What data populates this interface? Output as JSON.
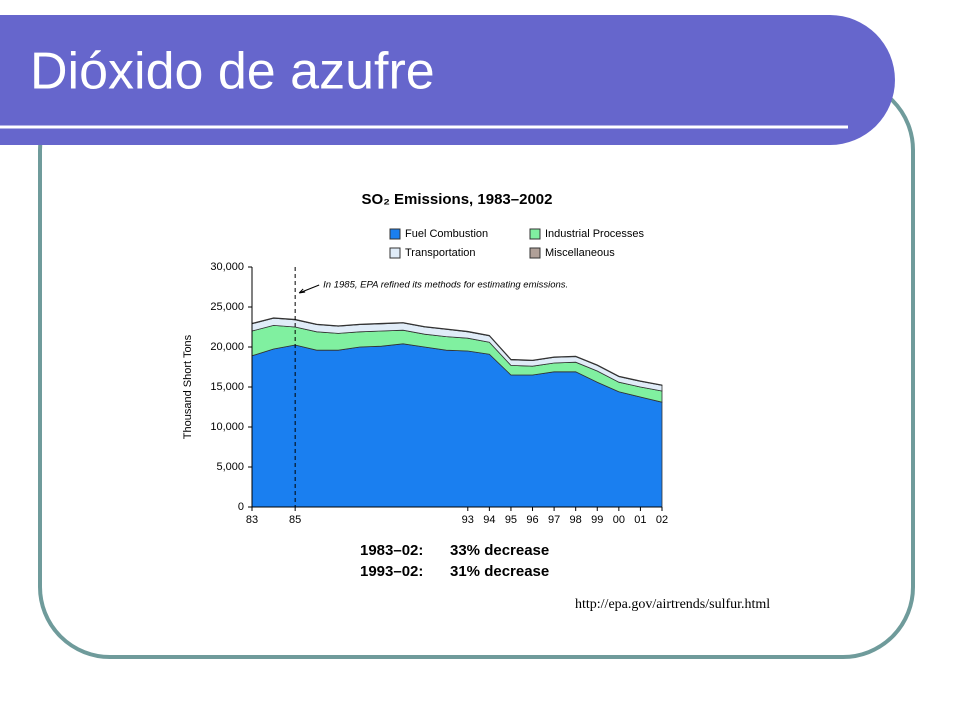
{
  "slide_title": "Dióxido de azufre",
  "chart_data": {
    "type": "stacked-area",
    "title": "SO₂ Emissions, 1983–2002",
    "y_label": "Thousand Short Tons",
    "annotation": "In 1985, EPA refined its methods for estimating emissions.",
    "annotation_x": 1985,
    "x": [
      1983,
      1984,
      1985,
      1986,
      1987,
      1988,
      1989,
      1990,
      1991,
      1992,
      1993,
      1994,
      1995,
      1996,
      1997,
      1998,
      1999,
      2000,
      2001,
      2002
    ],
    "xlim": [
      1983,
      2002
    ],
    "xticks": [
      {
        "value": 1983,
        "label": "83"
      },
      {
        "value": 1985,
        "label": "85"
      },
      {
        "value": 1993,
        "label": "93"
      },
      {
        "value": 1994,
        "label": "94"
      },
      {
        "value": 1995,
        "label": "95"
      },
      {
        "value": 1996,
        "label": "96"
      },
      {
        "value": 1997,
        "label": "97"
      },
      {
        "value": 1998,
        "label": "98"
      },
      {
        "value": 1999,
        "label": "99"
      },
      {
        "value": 2000,
        "label": "00"
      },
      {
        "value": 2001,
        "label": "01"
      },
      {
        "value": 2002,
        "label": "02"
      }
    ],
    "ylim": [
      0,
      30000
    ],
    "yticks": [
      0,
      {
        "value": 5000,
        "label": "5,000"
      },
      {
        "value": 10000,
        "label": "10,000"
      },
      {
        "value": 15000,
        "label": "15,000"
      },
      {
        "value": 20000,
        "label": "20,000"
      },
      {
        "value": 25000,
        "label": "25,000"
      },
      {
        "value": 30000,
        "label": "30,000"
      }
    ],
    "series": [
      {
        "name": "Fuel Combustion",
        "color": "#1a7ff0",
        "values": [
          18900,
          19750,
          20250,
          19600,
          19600,
          20000,
          20100,
          20400,
          20000,
          19600,
          19500,
          19100,
          16500,
          16500,
          16900,
          16900,
          15600,
          14400,
          13750,
          13100
        ]
      },
      {
        "name": "Industrial Processes",
        "color": "#80f0a0",
        "values": [
          3100,
          2950,
          2250,
          2300,
          2100,
          1900,
          1900,
          1700,
          1600,
          1700,
          1600,
          1500,
          1200,
          1100,
          1100,
          1200,
          1400,
          1200,
          1250,
          1400
        ]
      },
      {
        "name": "Transportation",
        "color": "#e0ecf8",
        "values": [
          900,
          900,
          900,
          900,
          900,
          900,
          900,
          900,
          900,
          900,
          800,
          800,
          700,
          700,
          700,
          700,
          700,
          700,
          700,
          700
        ]
      },
      {
        "name": "Miscellaneous",
        "color": "#b0a098",
        "values": [
          60,
          60,
          60,
          60,
          60,
          60,
          60,
          60,
          60,
          60,
          60,
          60,
          60,
          60,
          60,
          60,
          60,
          60,
          60,
          60
        ]
      }
    ]
  },
  "notes": [
    [
      "1983–02:",
      "33% decrease"
    ],
    [
      "1993–02:",
      "31% decrease"
    ]
  ],
  "source": "http://epa.gov/airtrends/sulfur.html"
}
